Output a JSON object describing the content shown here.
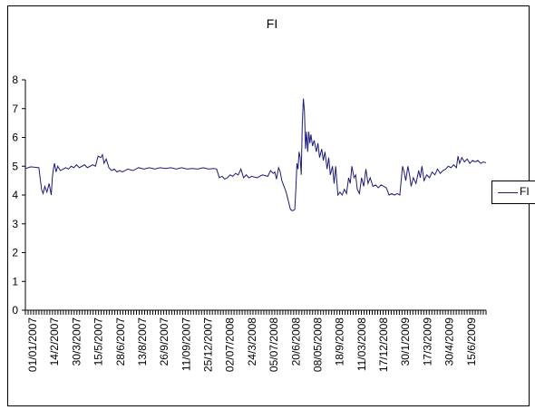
{
  "chart_data": {
    "type": "line",
    "title": "FI",
    "xlabel": "",
    "ylabel": "",
    "ylim": [
      0,
      8
    ],
    "y_ticks": [
      "0",
      "1",
      "2",
      "3",
      "4",
      "5",
      "6",
      "7",
      "8"
    ],
    "x_tick_labels": [
      "01/01/2007",
      "14/2/2007",
      "30/3/2007",
      "15/5/2007",
      "28/6/2007",
      "13/8/2007",
      "26/9/2007",
      "11/09/2007",
      "25/12/2007",
      "02/07/2008",
      "24/3/2008",
      "05/07/2008",
      "20/6/2008",
      "08/05/2008",
      "18/9/2008",
      "11/03/2008",
      "17/12/2008",
      "30/1/2009",
      "17/3/2009",
      "30/4/2009",
      "15/6/2009"
    ],
    "grid": false,
    "legend": "right",
    "colors": {
      "series": "#1c1c7a"
    },
    "series": [
      {
        "name": "FI",
        "points": [
          [
            0,
            4.92
          ],
          [
            0.5,
            4.95
          ],
          [
            1,
            4.98
          ],
          [
            1.5,
            4.97
          ],
          [
            2,
            4.96
          ],
          [
            2.5,
            4.95
          ],
          [
            2.8,
            4.5
          ],
          [
            3,
            4.2
          ],
          [
            3.3,
            4.05
          ],
          [
            3.6,
            4.3
          ],
          [
            4,
            4.1
          ],
          [
            4.4,
            4.4
          ],
          [
            4.8,
            4.0
          ],
          [
            5,
            4.6
          ],
          [
            5.2,
            4.9
          ],
          [
            5.4,
            5.1
          ],
          [
            5.7,
            4.8
          ],
          [
            6,
            5.0
          ],
          [
            6.5,
            4.85
          ],
          [
            7,
            4.9
          ],
          [
            7.5,
            4.95
          ],
          [
            8,
            4.9
          ],
          [
            8.5,
            5.0
          ],
          [
            9,
            4.95
          ],
          [
            9.5,
            5.05
          ],
          [
            10,
            4.95
          ],
          [
            10.5,
            5.0
          ],
          [
            11,
            5.05
          ],
          [
            11.5,
            4.95
          ],
          [
            12,
            5.0
          ],
          [
            12.5,
            5.05
          ],
          [
            13,
            5.0
          ],
          [
            13.5,
            5.35
          ],
          [
            14,
            5.3
          ],
          [
            14.3,
            5.4
          ],
          [
            14.6,
            5.1
          ],
          [
            15,
            5.25
          ],
          [
            15.5,
            4.95
          ],
          [
            16,
            4.85
          ],
          [
            16.5,
            4.9
          ],
          [
            17,
            4.8
          ],
          [
            17.5,
            4.85
          ],
          [
            18,
            4.8
          ],
          [
            18.5,
            4.85
          ],
          [
            19,
            4.9
          ],
          [
            20,
            4.85
          ],
          [
            21,
            4.95
          ],
          [
            22,
            4.9
          ],
          [
            23,
            4.95
          ],
          [
            24,
            4.9
          ],
          [
            25,
            4.95
          ],
          [
            26,
            4.92
          ],
          [
            27,
            4.95
          ],
          [
            28,
            4.9
          ],
          [
            29,
            4.95
          ],
          [
            30,
            4.9
          ],
          [
            31,
            4.92
          ],
          [
            32,
            4.9
          ],
          [
            33,
            4.95
          ],
          [
            34,
            4.9
          ],
          [
            35,
            4.92
          ],
          [
            35.5,
            4.9
          ],
          [
            36,
            4.6
          ],
          [
            36.5,
            4.65
          ],
          [
            37,
            4.55
          ],
          [
            37.5,
            4.6
          ],
          [
            38,
            4.7
          ],
          [
            38.5,
            4.65
          ],
          [
            39,
            4.75
          ],
          [
            39.5,
            4.7
          ],
          [
            40,
            4.9
          ],
          [
            40.5,
            4.6
          ],
          [
            41,
            4.7
          ],
          [
            41.5,
            4.6
          ],
          [
            42,
            4.65
          ],
          [
            43,
            4.6
          ],
          [
            44,
            4.7
          ],
          [
            45,
            4.65
          ],
          [
            45.5,
            4.85
          ],
          [
            46,
            4.75
          ],
          [
            46.3,
            4.8
          ],
          [
            46.6,
            4.55
          ],
          [
            47,
            4.95
          ],
          [
            47.3,
            4.8
          ],
          [
            47.6,
            4.5
          ],
          [
            48,
            4.3
          ],
          [
            48.4,
            4.1
          ],
          [
            48.8,
            3.8
          ],
          [
            49.2,
            3.5
          ],
          [
            49.6,
            3.45
          ],
          [
            50,
            3.5
          ],
          [
            50.2,
            4.2
          ],
          [
            50.4,
            5.1
          ],
          [
            50.6,
            4.9
          ],
          [
            50.8,
            5.5
          ],
          [
            51,
            5.3
          ],
          [
            51.2,
            4.7
          ],
          [
            51.4,
            6.5
          ],
          [
            51.6,
            7.35
          ],
          [
            51.8,
            6.9
          ],
          [
            52,
            5.6
          ],
          [
            52.2,
            6.2
          ],
          [
            52.4,
            5.5
          ],
          [
            52.6,
            6.2
          ],
          [
            52.8,
            5.8
          ],
          [
            53,
            6.1
          ],
          [
            53.3,
            5.7
          ],
          [
            53.6,
            5.9
          ],
          [
            54,
            5.5
          ],
          [
            54.3,
            5.8
          ],
          [
            54.6,
            5.3
          ],
          [
            55,
            5.6
          ],
          [
            55.3,
            5.2
          ],
          [
            55.6,
            5.5
          ],
          [
            56,
            4.9
          ],
          [
            56.3,
            5.3
          ],
          [
            56.6,
            4.7
          ],
          [
            57,
            5.0
          ],
          [
            57.3,
            4.4
          ],
          [
            57.6,
            5.0
          ],
          [
            58,
            4.0
          ],
          [
            58.4,
            4.1
          ],
          [
            58.8,
            4.0
          ],
          [
            59.2,
            4.2
          ],
          [
            59.6,
            4.05
          ],
          [
            60,
            4.6
          ],
          [
            60.3,
            4.4
          ],
          [
            60.6,
            5.0
          ],
          [
            61,
            4.6
          ],
          [
            61.3,
            4.7
          ],
          [
            61.6,
            4.2
          ],
          [
            62,
            4.05
          ],
          [
            62.4,
            4.6
          ],
          [
            62.8,
            4.3
          ],
          [
            63.2,
            4.9
          ],
          [
            63.6,
            4.4
          ],
          [
            64,
            4.6
          ],
          [
            64.5,
            4.3
          ],
          [
            65,
            4.35
          ],
          [
            65.5,
            4.25
          ],
          [
            66,
            4.35
          ],
          [
            66.5,
            4.3
          ],
          [
            67,
            4.25
          ],
          [
            67.5,
            4.0
          ],
          [
            68,
            4.05
          ],
          [
            68.5,
            4.0
          ],
          [
            69,
            4.05
          ],
          [
            69.5,
            4.0
          ],
          [
            70,
            5.0
          ],
          [
            70.3,
            4.8
          ],
          [
            70.6,
            4.5
          ],
          [
            71,
            5.0
          ],
          [
            71.3,
            4.7
          ],
          [
            71.6,
            4.3
          ],
          [
            72,
            4.6
          ],
          [
            72.5,
            4.4
          ],
          [
            73,
            4.85
          ],
          [
            73.3,
            4.6
          ],
          [
            73.6,
            5.0
          ],
          [
            74,
            4.5
          ],
          [
            74.5,
            4.7
          ],
          [
            75,
            4.6
          ],
          [
            75.5,
            4.8
          ],
          [
            76,
            4.7
          ],
          [
            76.5,
            4.9
          ],
          [
            77,
            4.75
          ],
          [
            77.5,
            4.85
          ],
          [
            78,
            4.9
          ],
          [
            78.5,
            5.0
          ],
          [
            79,
            4.95
          ],
          [
            79.5,
            5.05
          ],
          [
            80,
            4.95
          ],
          [
            80.3,
            5.35
          ],
          [
            80.6,
            5.1
          ],
          [
            81,
            5.3
          ],
          [
            81.5,
            5.15
          ],
          [
            82,
            5.25
          ],
          [
            82.5,
            5.1
          ],
          [
            83,
            5.2
          ],
          [
            83.5,
            5.15
          ],
          [
            84,
            5.2
          ],
          [
            84.5,
            5.1
          ],
          [
            85,
            5.15
          ],
          [
            85.5,
            5.12
          ]
        ]
      }
    ]
  }
}
